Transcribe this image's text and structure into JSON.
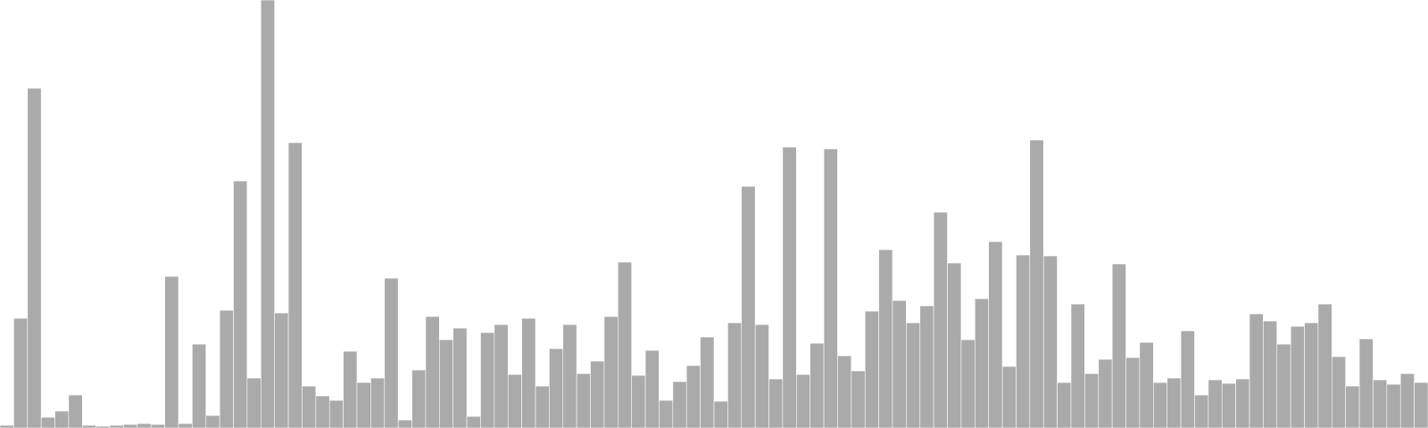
{
  "chart_data": {
    "type": "bar",
    "title": "",
    "xlabel": "",
    "ylabel": "",
    "ylim": [
      0,
      480
    ],
    "grid": false,
    "legend": "none",
    "bar_color": "#aaaaaa",
    "values": [
      3,
      123,
      381,
      12,
      19,
      37,
      3,
      2,
      3,
      4,
      5,
      4,
      170,
      5,
      94,
      14,
      132,
      277,
      56,
      480,
      129,
      320,
      47,
      36,
      31,
      86,
      51,
      56,
      168,
      9,
      65,
      125,
      99,
      112,
      13,
      107,
      116,
      60,
      123,
      47,
      89,
      116,
      61,
      75,
      125,
      186,
      59,
      87,
      31,
      52,
      70,
      102,
      30,
      118,
      271,
      116,
      55,
      315,
      60,
      95,
      313,
      81,
      64,
      131,
      200,
      143,
      118,
      137,
      242,
      185,
      99,
      145,
      209,
      69,
      194,
      323,
      193,
      51,
      139,
      61,
      77,
      184,
      79,
      96,
      51,
      56,
      109,
      37,
      54,
      50,
      55,
      128,
      120,
      94,
      114,
      118,
      139,
      80,
      47,
      100,
      54,
      49,
      61,
      51
    ]
  }
}
